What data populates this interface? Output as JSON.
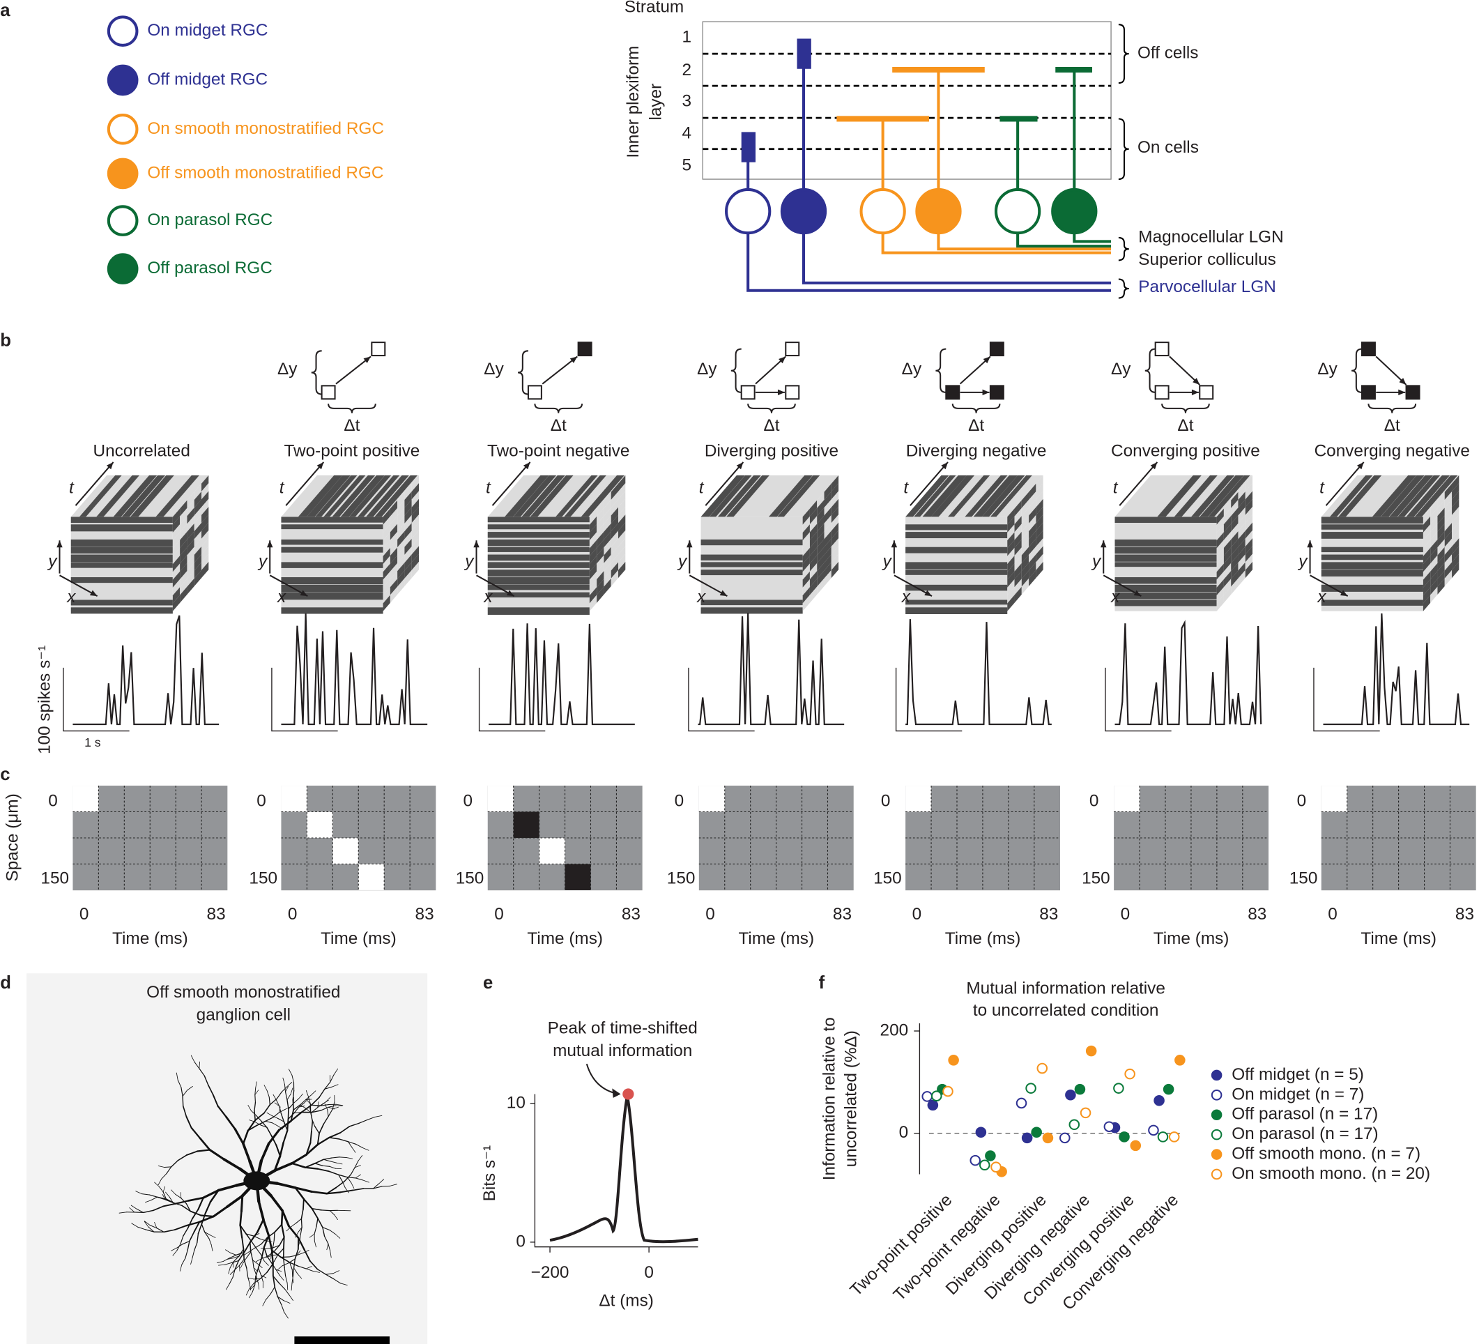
{
  "panel_labels": [
    "a",
    "b",
    "c",
    "d",
    "e",
    "f"
  ],
  "a": {
    "legend": [
      "On midget RGC",
      "Off midget RGC",
      "On smooth monostratified RGC",
      "Off smooth monostratified RGC",
      "On parasol RGC",
      "Off parasol RGC"
    ],
    "stratum_title": "Stratum",
    "strata": [
      "1",
      "2",
      "3",
      "4",
      "5"
    ],
    "layer_label": [
      "Inner plexiform",
      "layer"
    ],
    "off_cells": "Off cells",
    "on_cells": "On cells",
    "targets": [
      "Magnocellular LGN",
      "Superior colliculus",
      "Parvocellular LGN"
    ]
  },
  "b": {
    "conditions": [
      "Uncorrelated",
      "Two-point positive",
      "Two-point negative",
      "Diverging positive",
      "Diverging negative",
      "Converging positive",
      "Converging negative"
    ],
    "delta_y": "Δy",
    "delta_t": "Δt",
    "axes": [
      "t",
      "y",
      "x"
    ],
    "scale_y": "100 spikes s⁻¹",
    "scale_x": "1 s"
  },
  "c": {
    "space_label": "Space (μm)",
    "space_ticks": [
      "0",
      "150"
    ],
    "time_ticks": [
      "0",
      "83"
    ],
    "time_label": "Time (ms)"
  },
  "d": {
    "title": [
      "Off smooth monostratified",
      "ganglion cell"
    ]
  },
  "e": {
    "annotation": [
      "Peak of time-shifted",
      "mutual information"
    ],
    "ylabel": "Bits s⁻¹",
    "yticks": [
      "10",
      "0"
    ],
    "xticks": [
      "−200",
      "0"
    ],
    "xlabel": "Δt (ms)"
  },
  "chart_data": {
    "type": "scatter",
    "title": [
      "Mutual information relative",
      "to uncorrelated condition"
    ],
    "ylabel": [
      "Information relative to",
      "uncorrelated (%Δ)"
    ],
    "categories": [
      "Two-point positive",
      "Two-point negative",
      "Diverging positive",
      "Diverging negative",
      "Converging positive",
      "Converging negative"
    ],
    "ylim": [
      -80,
      215
    ],
    "yticks": [
      0,
      200
    ],
    "series": [
      {
        "name": "Off midget (n = 5)",
        "color": "#2e3192",
        "filled": true,
        "values": [
          55,
          2,
          -9,
          75,
          11,
          64
        ]
      },
      {
        "name": "On midget (n = 7)",
        "color": "#2e3192",
        "filled": false,
        "values": [
          72,
          -53,
          59,
          -9,
          13,
          6
        ]
      },
      {
        "name": "Off parasol (n = 17)",
        "color": "#0b7a3b",
        "filled": true,
        "values": [
          86,
          -44,
          2,
          86,
          -7,
          86
        ]
      },
      {
        "name": "On parasol (n = 17)",
        "color": "#0b7a3b",
        "filled": false,
        "values": [
          73,
          -62,
          88,
          17,
          88,
          -7
        ]
      },
      {
        "name": "Off smooth mono. (n = 7)",
        "color": "#f7941d",
        "filled": true,
        "values": [
          143,
          -75,
          -9,
          161,
          -24,
          143
        ]
      },
      {
        "name": "On smooth mono. (n = 20)",
        "color": "#f7941d",
        "filled": false,
        "values": [
          82,
          -66,
          127,
          40,
          116,
          -7
        ]
      }
    ]
  }
}
